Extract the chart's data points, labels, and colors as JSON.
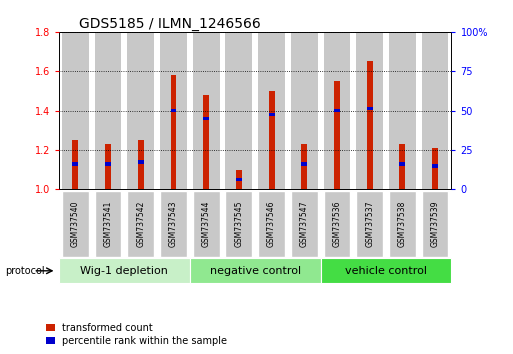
{
  "title": "GDS5185 / ILMN_1246566",
  "samples": [
    "GSM737540",
    "GSM737541",
    "GSM737542",
    "GSM737543",
    "GSM737544",
    "GSM737545",
    "GSM737546",
    "GSM737547",
    "GSM737536",
    "GSM737537",
    "GSM737538",
    "GSM737539"
  ],
  "red_values": [
    1.25,
    1.23,
    1.25,
    1.58,
    1.48,
    1.1,
    1.5,
    1.23,
    1.55,
    1.65,
    1.23,
    1.21
  ],
  "blue_values": [
    1.13,
    1.13,
    1.14,
    1.4,
    1.36,
    1.05,
    1.38,
    1.13,
    1.4,
    1.41,
    1.13,
    1.12
  ],
  "ylim_left": [
    1.0,
    1.8
  ],
  "ylim_right": [
    0,
    100
  ],
  "yticks_left": [
    1.0,
    1.2,
    1.4,
    1.6,
    1.8
  ],
  "yticks_right": [
    0,
    25,
    50,
    75,
    100
  ],
  "ytick_labels_right": [
    "0",
    "25",
    "50",
    "75",
    "100%"
  ],
  "groups": [
    {
      "label": "Wig-1 depletion",
      "start": 0,
      "end": 4,
      "color": "#c8f0c8"
    },
    {
      "label": "negative control",
      "start": 4,
      "end": 8,
      "color": "#90e890"
    },
    {
      "label": "vehicle control",
      "start": 8,
      "end": 12,
      "color": "#44dd44"
    }
  ],
  "red_color": "#cc2200",
  "blue_color": "#0000cc",
  "bar_bg_color": "#c8c8c8",
  "label_box_color": "#c8c8c8",
  "legend_red": "transformed count",
  "legend_blue": "percentile rank within the sample",
  "protocol_label": "protocol",
  "title_fontsize": 10,
  "tick_fontsize": 7,
  "sample_fontsize": 5.5,
  "group_fontsize": 8,
  "legend_fontsize": 7
}
